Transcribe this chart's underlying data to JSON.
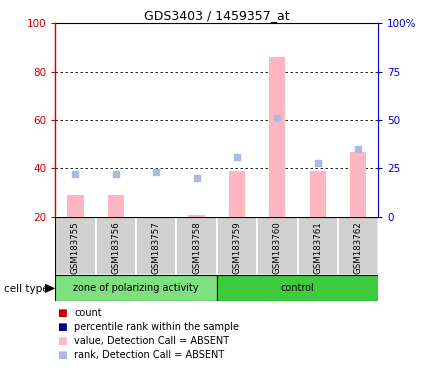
{
  "title": "GDS3403 / 1459357_at",
  "samples": [
    "GSM183755",
    "GSM183756",
    "GSM183757",
    "GSM183758",
    "GSM183759",
    "GSM183760",
    "GSM183761",
    "GSM183762"
  ],
  "bar_values_absent": [
    29,
    29,
    20,
    21,
    39,
    86,
    39,
    47
  ],
  "rank_values_absent_pct": [
    22,
    22,
    23,
    20,
    31,
    51,
    28,
    35
  ],
  "groups": [
    {
      "label": "zone of polarizing activity",
      "start": 0,
      "end": 4,
      "color": "#7EE07E"
    },
    {
      "label": "control",
      "start": 4,
      "end": 8,
      "color": "#3ECC3E"
    }
  ],
  "left_ylim": [
    20,
    100
  ],
  "left_yticks": [
    20,
    40,
    60,
    80,
    100
  ],
  "right_ylim": [
    0,
    100
  ],
  "right_yticks": [
    0,
    25,
    50,
    75,
    100
  ],
  "right_yticklabels": [
    "0",
    "25",
    "50",
    "75",
    "100%"
  ],
  "bar_color_absent": "#FFB6C1",
  "rank_color_absent": "#B0B8E0",
  "left_axis_color": "#CC0000",
  "right_axis_color": "#0000CC",
  "legend_items": [
    {
      "label": "count",
      "color": "#CC0000"
    },
    {
      "label": "percentile rank within the sample",
      "color": "#00008B"
    },
    {
      "label": "value, Detection Call = ABSENT",
      "color": "#FFB6C1"
    },
    {
      "label": "rank, Detection Call = ABSENT",
      "color": "#B0B8E0"
    }
  ],
  "cell_type_label": "cell type",
  "bar_width": 0.4
}
